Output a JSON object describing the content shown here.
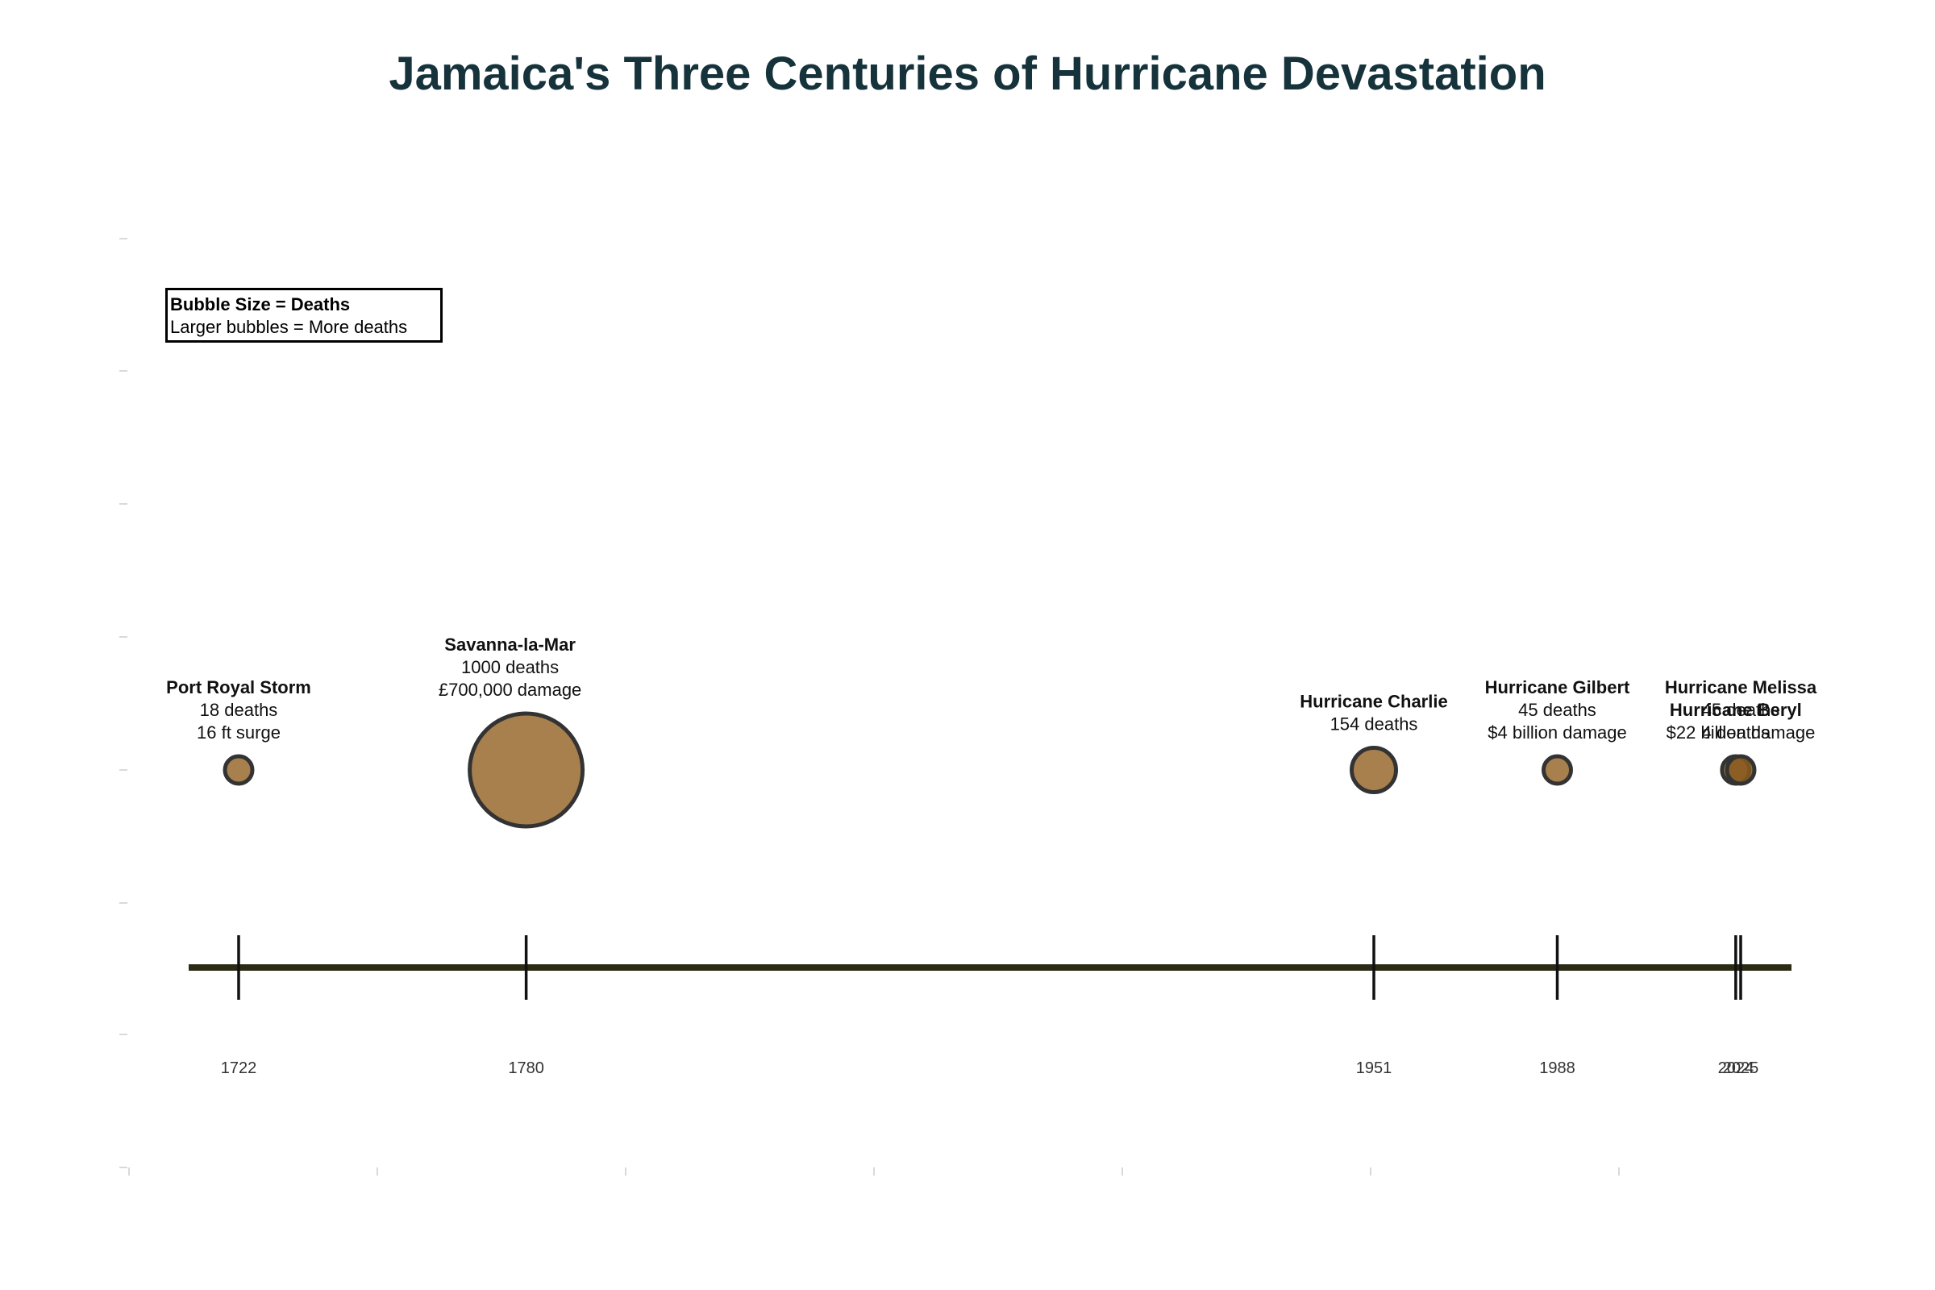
{
  "title": "Jamaica's Three Centuries of Hurricane Devastation",
  "legend": {
    "title": "Bubble Size = Deaths",
    "text": "Larger bubbles = More deaths"
  },
  "colors": {
    "bubble": "#a8804e",
    "bubble_recent": "#8a5a20",
    "bubble_edge": "#333333",
    "axis_line": "#2b2a14",
    "title": "#16333c"
  },
  "chart_data": {
    "type": "scatter",
    "title": "Jamaica's Three Centuries of Hurricane Devastation",
    "xlabel": "",
    "ylabel": "",
    "xlim": [
      1700,
      2035
    ],
    "grid": false,
    "legend_placement": "top-left",
    "events": [
      {
        "year": 1722,
        "name": "Port Royal Storm",
        "deaths": 18,
        "deaths_label": "18 deaths",
        "detail": "16 ft surge"
      },
      {
        "year": 1780,
        "name": "Savanna-la-Mar",
        "deaths": 1000,
        "deaths_label": "1000 deaths",
        "detail": "£700,000 damage"
      },
      {
        "year": 1951,
        "name": "Hurricane Charlie",
        "deaths": 154,
        "deaths_label": "154 deaths",
        "detail": ""
      },
      {
        "year": 1988,
        "name": "Hurricane Gilbert",
        "deaths": 45,
        "deaths_label": "45 deaths",
        "detail": "$4 billion damage"
      },
      {
        "year": 2024,
        "name": "Hurricane Beryl",
        "deaths": 4,
        "deaths_label": "4 deaths",
        "detail": ""
      },
      {
        "year": 2025,
        "name": "Hurricane Melissa",
        "deaths": 45,
        "deaths_label": "45 deaths",
        "detail": "$22 billion damage"
      }
    ],
    "tick_labels": [
      "1722",
      "1780",
      "1951",
      "1988",
      "2024",
      "2025"
    ]
  }
}
